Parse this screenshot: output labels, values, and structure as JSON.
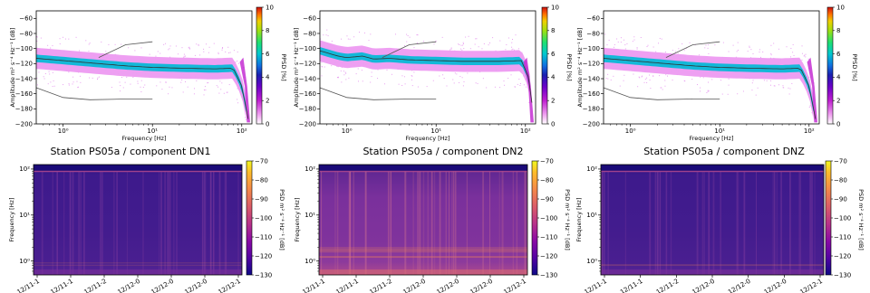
{
  "figure": {
    "panels": [
      {
        "title": "",
        "xlabel": "Frequency [Hz]",
        "ylabel": "Amplitude m² s⁻⁴ Hz⁻¹ [dB]",
        "cbar_label": "PPSD [%]"
      },
      {
        "title": "",
        "xlabel": "Frequency [Hz]",
        "ylabel": "Amplitude m² s⁻⁴ Hz⁻¹ [dB]",
        "cbar_label": "PPSD [%]"
      },
      {
        "title": "",
        "xlabel": "Frequency [Hz]",
        "ylabel": "Amplitude m² s⁻⁴ Hz⁻¹ [dB]",
        "cbar_label": "PPSD [%]"
      },
      {
        "title": "Station PS05a / component DN1",
        "xlabel": "",
        "ylabel": "Frequency [Hz]",
        "cbar_label": "PSD m² s⁻⁴ Hz⁻¹ [dB]"
      },
      {
        "title": "Station PS05a / component DN2",
        "xlabel": "",
        "ylabel": "Frequency [Hz]",
        "cbar_label": "PSD m² s⁻⁴ Hz⁻¹ [dB]"
      },
      {
        "title": "Station PS05a / component DNZ",
        "xlabel": "",
        "ylabel": "Frequency [Hz]",
        "cbar_label": "PSD m² s⁻⁴ Hz⁻¹ [dB]"
      }
    ]
  },
  "colors": {
    "ppsd_cmap": [
      "#ffffff",
      "#f0a0f0",
      "#d020d8",
      "#7a00d0",
      "#1a1aa8",
      "#1a60d8",
      "#00c0d0",
      "#20e080",
      "#40d020",
      "#f0e000",
      "#ff8000",
      "#d01010"
    ],
    "spec_cmap": [
      "#0d0887",
      "#3e049c",
      "#6a00a8",
      "#8f0da4",
      "#b12a90",
      "#cc4778",
      "#e16462",
      "#f2844b",
      "#fca636",
      "#fcce25",
      "#f0f921"
    ],
    "ppsd_band": "#00d8e0",
    "ppsd_halo": "#e020e0",
    "spec_bg": "#3a1c86",
    "spec_bg2": "#6e2a9a"
  },
  "chart_data": [
    {
      "type": "heatmap",
      "name": "ppsd-dn1",
      "xscale": "log",
      "xlim": [
        0.5,
        130
      ],
      "xticks": [
        "10⁰",
        "10¹",
        "10²"
      ],
      "ylim": [
        -200,
        -50
      ],
      "yticks": [
        -60,
        -80,
        -100,
        -120,
        -140,
        -160,
        -180,
        -200
      ],
      "colorbar": {
        "range": [
          0,
          10
        ],
        "ticks": [
          0,
          2,
          4,
          6,
          8,
          10
        ]
      },
      "mode_curve": {
        "x": [
          0.5,
          1,
          2,
          5,
          10,
          20,
          50,
          80,
          100,
          120
        ],
        "y": [
          -113,
          -116,
          -119,
          -123,
          -125,
          -126,
          -127,
          -126,
          -150,
          -198
        ]
      },
      "noise_model_high": {
        "x": [
          2.5,
          5,
          10
        ],
        "y": [
          -112,
          -95,
          -91
        ]
      },
      "noise_model_low": {
        "x": [
          0.5,
          1,
          2,
          5,
          10
        ],
        "y": [
          -152,
          -165,
          -168,
          -167,
          -167
        ]
      }
    },
    {
      "type": "heatmap",
      "name": "ppsd-dn2",
      "xscale": "log",
      "xlim": [
        0.5,
        130
      ],
      "xticks": [
        "10⁰",
        "10¹",
        "10²"
      ],
      "ylim": [
        -200,
        -50
      ],
      "yticks": [
        -60,
        -80,
        -100,
        -120,
        -140,
        -160,
        -180,
        -200
      ],
      "colorbar": {
        "range": [
          0,
          10
        ],
        "ticks": [
          0,
          2,
          4,
          6,
          8,
          10
        ]
      },
      "mode_curve": {
        "x": [
          0.5,
          0.8,
          1,
          1.5,
          2,
          3,
          5,
          10,
          20,
          50,
          90,
          110,
          125
        ],
        "y": [
          -103,
          -110,
          -112,
          -110,
          -114,
          -113,
          -115,
          -116,
          -117,
          -117,
          -116,
          -140,
          -198
        ]
      },
      "noise_model_high": {
        "x": [
          2.5,
          5,
          10
        ],
        "y": [
          -112,
          -95,
          -91
        ]
      },
      "noise_model_low": {
        "x": [
          0.5,
          1,
          2,
          5,
          10
        ],
        "y": [
          -152,
          -165,
          -168,
          -167,
          -167
        ]
      }
    },
    {
      "type": "heatmap",
      "name": "ppsd-dnz",
      "xscale": "log",
      "xlim": [
        0.5,
        130
      ],
      "xticks": [
        "10⁰",
        "10¹",
        "10²"
      ],
      "ylim": [
        -200,
        -50
      ],
      "yticks": [
        -60,
        -80,
        -100,
        -120,
        -140,
        -160,
        -180,
        -200
      ],
      "colorbar": {
        "range": [
          0,
          10
        ],
        "ticks": [
          0,
          2,
          4,
          6,
          8,
          10
        ]
      },
      "mode_curve": {
        "x": [
          0.5,
          1,
          2,
          5,
          10,
          20,
          50,
          80,
          100,
          120
        ],
        "y": [
          -113,
          -116,
          -119,
          -123,
          -125,
          -126,
          -127,
          -126,
          -150,
          -198
        ]
      },
      "noise_model_high": {
        "x": [
          2.5,
          5,
          10
        ],
        "y": [
          -112,
          -95,
          -91
        ]
      },
      "noise_model_low": {
        "x": [
          0.5,
          1,
          2,
          5,
          10
        ],
        "y": [
          -152,
          -165,
          -168,
          -167,
          -167
        ]
      }
    },
    {
      "type": "heatmap",
      "name": "spectrogram-dn1",
      "title": "Station PS05a / component DN1",
      "ylabel": "Frequency [Hz]",
      "yscale": "log",
      "ylim": [
        0.5,
        125
      ],
      "yticks": [
        "10⁰",
        "10¹",
        "10²"
      ],
      "xticks": [
        "12/11-1",
        "12/11-1",
        "12/11-2",
        "12/12-0",
        "12/12-0",
        "12/12-0",
        "12/12-1"
      ],
      "colorbar": {
        "range": [
          -130,
          -70
        ],
        "ticks": [
          -70,
          -80,
          -90,
          -100,
          -110,
          -120,
          -130
        ]
      }
    },
    {
      "type": "heatmap",
      "name": "spectrogram-dn2",
      "title": "Station PS05a / component DN2",
      "ylabel": "Frequency [Hz]",
      "yscale": "log",
      "ylim": [
        0.5,
        125
      ],
      "yticks": [
        "10⁰",
        "10¹",
        "10²"
      ],
      "xticks": [
        "12/11-1",
        "12/11-1",
        "12/11-2",
        "12/12-0",
        "12/12-0",
        "12/12-0",
        "12/12-1"
      ],
      "colorbar": {
        "range": [
          -130,
          -70
        ],
        "ticks": [
          -70,
          -80,
          -90,
          -100,
          -110,
          -120,
          -130
        ]
      }
    },
    {
      "type": "heatmap",
      "name": "spectrogram-dnz",
      "title": "Station PS05a / component DNZ",
      "ylabel": "Frequency [Hz]",
      "yscale": "log",
      "ylim": [
        0.5,
        125
      ],
      "yticks": [
        "10⁰",
        "10¹",
        "10²"
      ],
      "xticks": [
        "12/11-1",
        "12/11-1",
        "12/11-2",
        "12/12-0",
        "12/12-0",
        "12/12-0",
        "12/12-1"
      ],
      "colorbar": {
        "range": [
          -130,
          -70
        ],
        "ticks": [
          -70,
          -80,
          -90,
          -100,
          -110,
          -120,
          -130
        ]
      }
    }
  ]
}
